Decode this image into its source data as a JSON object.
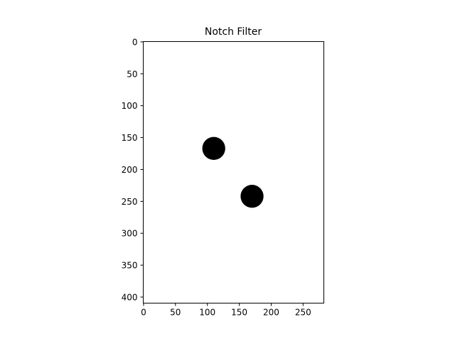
{
  "chart_data": {
    "type": "heatmap",
    "title": "Notch Filter",
    "xlabel": "",
    "ylabel": "",
    "xlim": [
      -0.5,
      282.5
    ],
    "ylim": [
      409.5,
      -0.5
    ],
    "x_ticks": [
      0,
      50,
      100,
      150,
      200,
      250
    ],
    "y_ticks": [
      0,
      50,
      100,
      150,
      200,
      250,
      300,
      350,
      400
    ],
    "grid": false,
    "image_size": {
      "width": 283,
      "height": 410
    },
    "background_value": 1,
    "notches": [
      {
        "cx": 110,
        "cy": 167,
        "radius": 18,
        "value": 0
      },
      {
        "cx": 170,
        "cy": 242,
        "radius": 18,
        "value": 0
      }
    ],
    "colors": {
      "pass": "#ffffff",
      "stop": "#000000",
      "axis": "#000000"
    }
  }
}
